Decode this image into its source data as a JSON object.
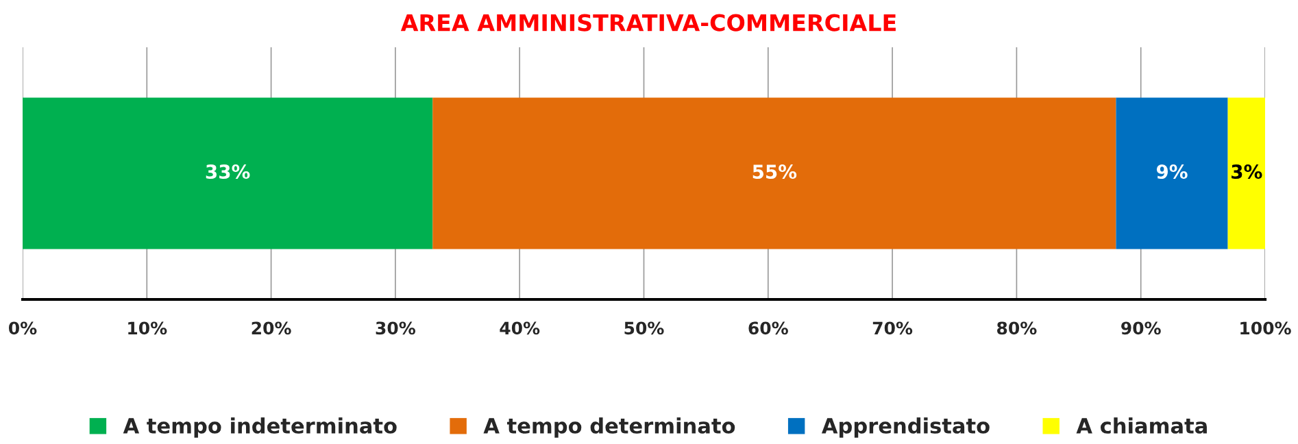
{
  "chart_data": {
    "type": "bar",
    "orientation": "horizontal",
    "stacked": true,
    "title": "AREA AMMINISTRATIVA-COMMERCIALE",
    "categories": [
      null
    ],
    "series": [
      {
        "name": "A tempo indeterminato",
        "color": "#00b050",
        "values": [
          33
        ],
        "value_labels": [
          "33%"
        ]
      },
      {
        "name": "A tempo determinato",
        "color": "#e36c0a",
        "values": [
          55
        ],
        "value_labels": [
          "55%"
        ]
      },
      {
        "name": "Apprendistato",
        "color": "#0070c0",
        "values": [
          9
        ],
        "value_labels": [
          "9%"
        ]
      },
      {
        "name": "A chiamata",
        "color": "#ffff00",
        "values": [
          3
        ],
        "value_labels": [
          "3%"
        ]
      }
    ],
    "xlim": [
      0,
      100
    ],
    "xticks": [
      {
        "value": 0,
        "label": "0%"
      },
      {
        "value": 10,
        "label": "10%"
      },
      {
        "value": 20,
        "label": "20%"
      },
      {
        "value": 30,
        "label": "30%"
      },
      {
        "value": 40,
        "label": "40%"
      },
      {
        "value": 50,
        "label": "50%"
      },
      {
        "value": 60,
        "label": "60%"
      },
      {
        "value": 70,
        "label": "70%"
      },
      {
        "value": 80,
        "label": "80%"
      },
      {
        "value": 90,
        "label": "90%"
      },
      {
        "value": 100,
        "label": "100%"
      }
    ],
    "grid": "x",
    "legend": "bottom"
  }
}
